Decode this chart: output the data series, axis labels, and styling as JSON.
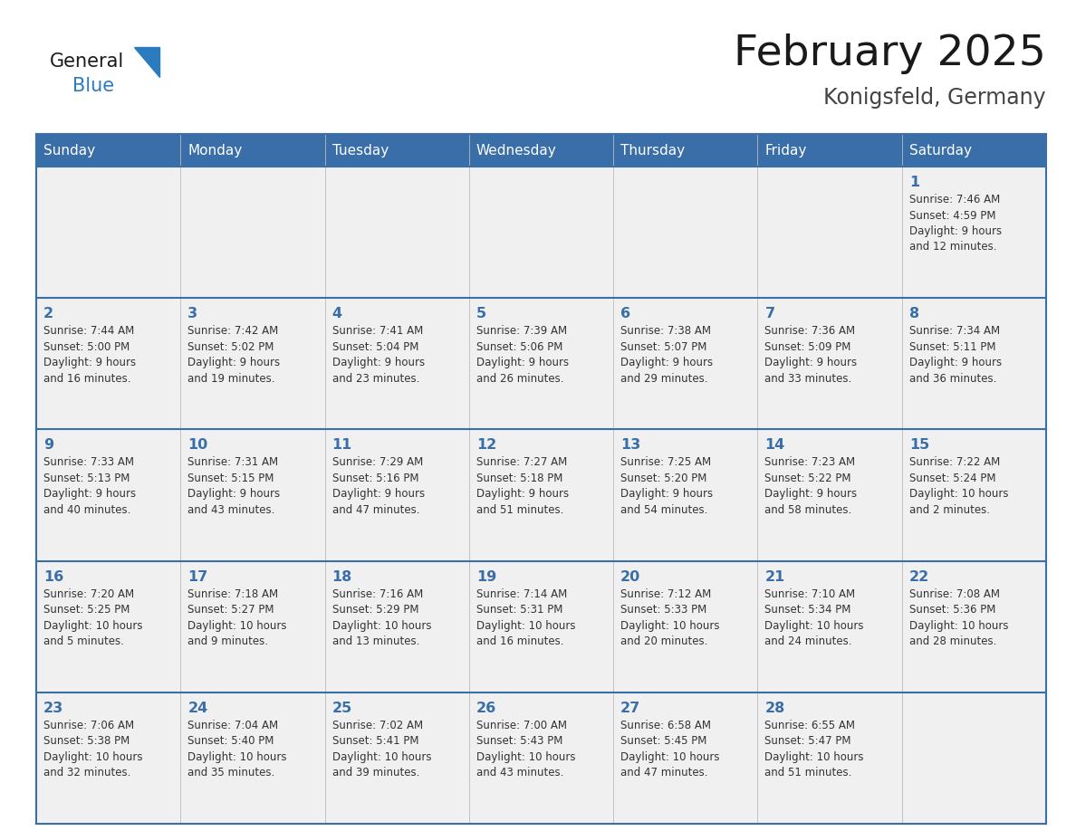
{
  "title": "February 2025",
  "subtitle": "Konigsfeld, Germany",
  "days_of_week": [
    "Sunday",
    "Monday",
    "Tuesday",
    "Wednesday",
    "Thursday",
    "Friday",
    "Saturday"
  ],
  "header_bg": "#3a6ea8",
  "header_text": "#ffffff",
  "cell_bg": "#f0f0f0",
  "border_color": "#3a6ea8",
  "day_number_color": "#3a6ea8",
  "text_color": "#333333",
  "logo_general_color": "#1a1a1a",
  "logo_blue_color": "#2b7bbf",
  "title_color": "#1a1a1a",
  "subtitle_color": "#444444",
  "weeks": [
    [
      {
        "day": null,
        "info": null
      },
      {
        "day": null,
        "info": null
      },
      {
        "day": null,
        "info": null
      },
      {
        "day": null,
        "info": null
      },
      {
        "day": null,
        "info": null
      },
      {
        "day": null,
        "info": null
      },
      {
        "day": 1,
        "info": "Sunrise: 7:46 AM\nSunset: 4:59 PM\nDaylight: 9 hours\nand 12 minutes."
      }
    ],
    [
      {
        "day": 2,
        "info": "Sunrise: 7:44 AM\nSunset: 5:00 PM\nDaylight: 9 hours\nand 16 minutes."
      },
      {
        "day": 3,
        "info": "Sunrise: 7:42 AM\nSunset: 5:02 PM\nDaylight: 9 hours\nand 19 minutes."
      },
      {
        "day": 4,
        "info": "Sunrise: 7:41 AM\nSunset: 5:04 PM\nDaylight: 9 hours\nand 23 minutes."
      },
      {
        "day": 5,
        "info": "Sunrise: 7:39 AM\nSunset: 5:06 PM\nDaylight: 9 hours\nand 26 minutes."
      },
      {
        "day": 6,
        "info": "Sunrise: 7:38 AM\nSunset: 5:07 PM\nDaylight: 9 hours\nand 29 minutes."
      },
      {
        "day": 7,
        "info": "Sunrise: 7:36 AM\nSunset: 5:09 PM\nDaylight: 9 hours\nand 33 minutes."
      },
      {
        "day": 8,
        "info": "Sunrise: 7:34 AM\nSunset: 5:11 PM\nDaylight: 9 hours\nand 36 minutes."
      }
    ],
    [
      {
        "day": 9,
        "info": "Sunrise: 7:33 AM\nSunset: 5:13 PM\nDaylight: 9 hours\nand 40 minutes."
      },
      {
        "day": 10,
        "info": "Sunrise: 7:31 AM\nSunset: 5:15 PM\nDaylight: 9 hours\nand 43 minutes."
      },
      {
        "day": 11,
        "info": "Sunrise: 7:29 AM\nSunset: 5:16 PM\nDaylight: 9 hours\nand 47 minutes."
      },
      {
        "day": 12,
        "info": "Sunrise: 7:27 AM\nSunset: 5:18 PM\nDaylight: 9 hours\nand 51 minutes."
      },
      {
        "day": 13,
        "info": "Sunrise: 7:25 AM\nSunset: 5:20 PM\nDaylight: 9 hours\nand 54 minutes."
      },
      {
        "day": 14,
        "info": "Sunrise: 7:23 AM\nSunset: 5:22 PM\nDaylight: 9 hours\nand 58 minutes."
      },
      {
        "day": 15,
        "info": "Sunrise: 7:22 AM\nSunset: 5:24 PM\nDaylight: 10 hours\nand 2 minutes."
      }
    ],
    [
      {
        "day": 16,
        "info": "Sunrise: 7:20 AM\nSunset: 5:25 PM\nDaylight: 10 hours\nand 5 minutes."
      },
      {
        "day": 17,
        "info": "Sunrise: 7:18 AM\nSunset: 5:27 PM\nDaylight: 10 hours\nand 9 minutes."
      },
      {
        "day": 18,
        "info": "Sunrise: 7:16 AM\nSunset: 5:29 PM\nDaylight: 10 hours\nand 13 minutes."
      },
      {
        "day": 19,
        "info": "Sunrise: 7:14 AM\nSunset: 5:31 PM\nDaylight: 10 hours\nand 16 minutes."
      },
      {
        "day": 20,
        "info": "Sunrise: 7:12 AM\nSunset: 5:33 PM\nDaylight: 10 hours\nand 20 minutes."
      },
      {
        "day": 21,
        "info": "Sunrise: 7:10 AM\nSunset: 5:34 PM\nDaylight: 10 hours\nand 24 minutes."
      },
      {
        "day": 22,
        "info": "Sunrise: 7:08 AM\nSunset: 5:36 PM\nDaylight: 10 hours\nand 28 minutes."
      }
    ],
    [
      {
        "day": 23,
        "info": "Sunrise: 7:06 AM\nSunset: 5:38 PM\nDaylight: 10 hours\nand 32 minutes."
      },
      {
        "day": 24,
        "info": "Sunrise: 7:04 AM\nSunset: 5:40 PM\nDaylight: 10 hours\nand 35 minutes."
      },
      {
        "day": 25,
        "info": "Sunrise: 7:02 AM\nSunset: 5:41 PM\nDaylight: 10 hours\nand 39 minutes."
      },
      {
        "day": 26,
        "info": "Sunrise: 7:00 AM\nSunset: 5:43 PM\nDaylight: 10 hours\nand 43 minutes."
      },
      {
        "day": 27,
        "info": "Sunrise: 6:58 AM\nSunset: 5:45 PM\nDaylight: 10 hours\nand 47 minutes."
      },
      {
        "day": 28,
        "info": "Sunrise: 6:55 AM\nSunset: 5:47 PM\nDaylight: 10 hours\nand 51 minutes."
      },
      {
        "day": null,
        "info": null
      }
    ]
  ]
}
